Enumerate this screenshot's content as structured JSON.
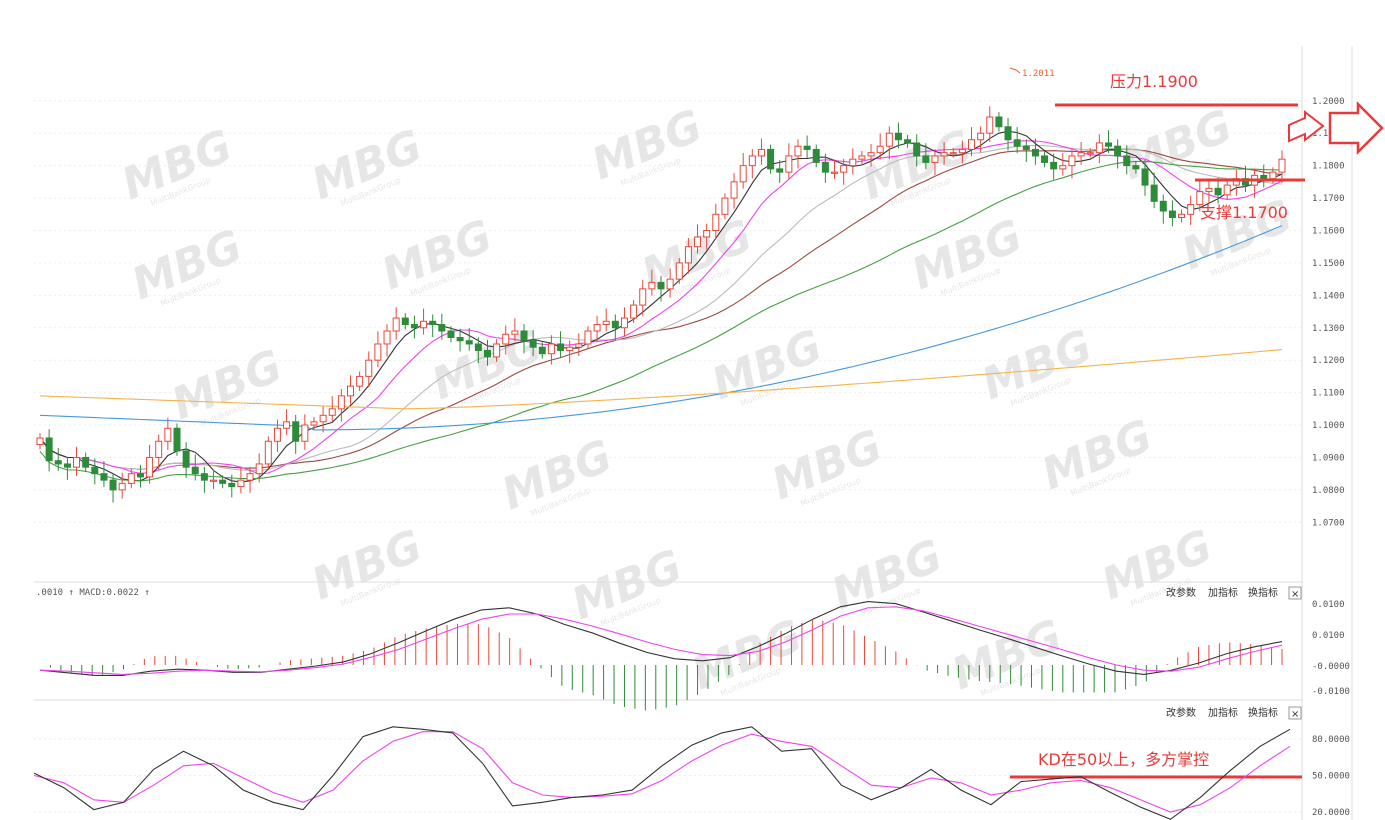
{
  "panels": {
    "macd": {
      "header": ".0010 ↑ MACD:0.0022 ↑",
      "tools": [
        "改参数",
        "加指标",
        "换指标"
      ],
      "close": "×"
    },
    "kd": {
      "tools": [
        "改参数",
        "加指标",
        "换指标"
      ],
      "close": "×"
    }
  },
  "annotations": {
    "resistance": "压力1.1900",
    "support": "支撑1.1700",
    "peak": "1.2011",
    "kd_note": "KD在50以上，多方掌控"
  },
  "watermark": {
    "logo": "MBG",
    "text": "MultiBankGroup"
  },
  "colors": {
    "up": "#e8483a",
    "down": "#2e8b3a",
    "ma5": "#333333",
    "ma10": "#ee44ee",
    "ma20": "#bbbbbb",
    "ma30": "#9b4a40",
    "ma60": "#44a044",
    "ma120": "#4499dd",
    "ma250": "#f2b54a",
    "annotation": "#e83a3a"
  },
  "chart_data": [
    {
      "type": "candlestick",
      "y_ticks": [
        "1.2000",
        "1.1900",
        "1.1800",
        "1.1700",
        "1.1600",
        "1.1500",
        "1.1400",
        "1.1300",
        "1.1200",
        "1.1100",
        "1.1000",
        "1.0900",
        "1.0800",
        "1.0700"
      ],
      "ylim": [
        1.063,
        1.2095
      ],
      "closes": [
        1.096,
        1.089,
        1.088,
        1.087,
        1.09,
        1.087,
        1.085,
        1.083,
        1.08,
        1.082,
        1.085,
        1.084,
        1.09,
        1.095,
        1.099,
        1.092,
        1.087,
        1.085,
        1.083,
        1.083,
        1.082,
        1.081,
        1.083,
        1.085,
        1.088,
        1.095,
        1.099,
        1.101,
        1.095,
        1.1,
        1.101,
        1.103,
        1.105,
        1.109,
        1.112,
        1.115,
        1.12,
        1.125,
        1.129,
        1.133,
        1.131,
        1.13,
        1.132,
        1.131,
        1.129,
        1.127,
        1.126,
        1.125,
        1.123,
        1.121,
        1.125,
        1.128,
        1.129,
        1.126,
        1.124,
        1.122,
        1.125,
        1.123,
        1.124,
        1.125,
        1.129,
        1.131,
        1.132,
        1.13,
        1.133,
        1.137,
        1.142,
        1.144,
        1.142,
        1.145,
        1.15,
        1.155,
        1.158,
        1.16,
        1.165,
        1.17,
        1.175,
        1.18,
        1.183,
        1.185,
        1.179,
        1.178,
        1.183,
        1.186,
        1.185,
        1.181,
        1.178,
        1.178,
        1.18,
        1.182,
        1.183,
        1.184,
        1.186,
        1.19,
        1.188,
        1.187,
        1.183,
        1.181,
        1.183,
        1.184,
        1.184,
        1.185,
        1.188,
        1.19,
        1.195,
        1.192,
        1.188,
        1.186,
        1.185,
        1.183,
        1.181,
        1.179,
        1.18,
        1.183,
        1.184,
        1.184,
        1.187,
        1.186,
        1.183,
        1.18,
        1.179,
        1.174,
        1.169,
        1.166,
        1.164,
        1.165,
        1.168,
        1.172,
        1.173,
        1.171,
        1.174,
        1.176,
        1.174,
        1.177,
        1.176,
        1.178,
        1.182
      ]
    },
    {
      "type": "bar+line",
      "title": "MACD",
      "y_ticks": [
        "0.0100",
        "0.0100",
        "-0.0000",
        "-0.0100"
      ],
      "dif": [
        -0.001,
        -0.0015,
        -0.002,
        -0.002,
        -0.0012,
        -0.0008,
        -0.001,
        -0.0014,
        -0.0014,
        -0.0008,
        -0.0002,
        0.0006,
        0.0022,
        0.0043,
        0.0066,
        0.0088,
        0.0106,
        0.011,
        0.0098,
        0.0078,
        0.0062,
        0.0042,
        0.0024,
        0.0012,
        0.0008,
        0.0014,
        0.0035,
        0.006,
        0.0088,
        0.0112,
        0.0122,
        0.0118,
        0.0102,
        0.0085,
        0.0068,
        0.0052,
        0.0035,
        0.0018,
        0.0002,
        -0.0012,
        -0.0018,
        -0.001,
        0.0004,
        0.0022,
        0.0035,
        0.0045
      ],
      "dea": [
        -0.001,
        -0.0012,
        -0.0015,
        -0.0018,
        -0.0016,
        -0.0012,
        -0.001,
        -0.0012,
        -0.0013,
        -0.001,
        -0.0005,
        0.0002,
        0.0015,
        0.003,
        0.005,
        0.007,
        0.0088,
        0.0098,
        0.0098,
        0.0088,
        0.0075,
        0.006,
        0.0044,
        0.003,
        0.002,
        0.0018,
        0.0026,
        0.0044,
        0.0068,
        0.0094,
        0.011,
        0.0112,
        0.0104,
        0.009,
        0.0075,
        0.006,
        0.0045,
        0.003,
        0.0014,
        0.0,
        -0.001,
        -0.0012,
        -0.0004,
        0.0012,
        0.0026,
        0.0038
      ]
    },
    {
      "type": "line",
      "title": "KD",
      "y_ticks": [
        "80.0000",
        "50.0000",
        "20.0000"
      ],
      "k": [
        52,
        40,
        22,
        28,
        55,
        70,
        58,
        38,
        28,
        22,
        50,
        82,
        90,
        88,
        85,
        60,
        25,
        28,
        32,
        34,
        38,
        58,
        75,
        85,
        90,
        70,
        72,
        42,
        30,
        40,
        55,
        38,
        26,
        45,
        47,
        49,
        36,
        24,
        14,
        32,
        54,
        74,
        88
      ],
      "d": [
        50,
        44,
        30,
        28,
        42,
        58,
        60,
        48,
        36,
        28,
        38,
        62,
        78,
        86,
        86,
        72,
        44,
        34,
        32,
        33,
        35,
        46,
        62,
        75,
        84,
        78,
        74,
        58,
        42,
        40,
        48,
        44,
        34,
        38,
        44,
        46,
        40,
        30,
        20,
        26,
        40,
        58,
        74
      ]
    }
  ]
}
